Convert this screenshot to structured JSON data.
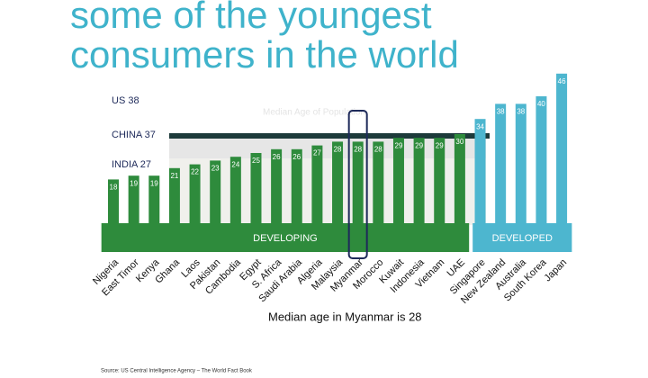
{
  "chart_data": {
    "type": "bar",
    "title_lines": [
      "some of the youngest",
      "consumers in the world"
    ],
    "faint_caption": "Median Age of Population",
    "reference_labels": [
      "US 38",
      "CHINA 37",
      "INDIA 27"
    ],
    "groups": [
      {
        "name": "DEVELOPING",
        "color": "#2e8b3c"
      },
      {
        "name": "DEVELOPED",
        "color": "#4db6cf"
      }
    ],
    "categories": [
      "Nigeria",
      "East Timor",
      "Kenya",
      "Ghana",
      "Laos",
      "Pakistan",
      "Cambodia",
      "Egypt",
      "S. Africa",
      "Saudi Arabia",
      "Algeria",
      "Malaysia",
      "Myanmar",
      "Morocco",
      "Kuwait",
      "Indonesia",
      "Vietnam",
      "UAE",
      "Singapore",
      "New Zealand",
      "Australia",
      "South Korea",
      "Japan"
    ],
    "values": [
      18,
      19,
      19,
      21,
      22,
      23,
      24,
      25,
      26,
      26,
      27,
      28,
      28,
      28,
      29,
      29,
      29,
      30,
      34,
      38,
      38,
      40,
      46
    ],
    "group_of_bar": [
      0,
      0,
      0,
      0,
      0,
      0,
      0,
      0,
      0,
      0,
      0,
      0,
      0,
      0,
      0,
      0,
      0,
      0,
      1,
      1,
      1,
      1,
      1
    ],
    "highlight": "Myanmar",
    "subtitle": "Median age in Myanmar is 28",
    "source": "Source: US Central Intelligence  Agency – The World Fact Book"
  }
}
